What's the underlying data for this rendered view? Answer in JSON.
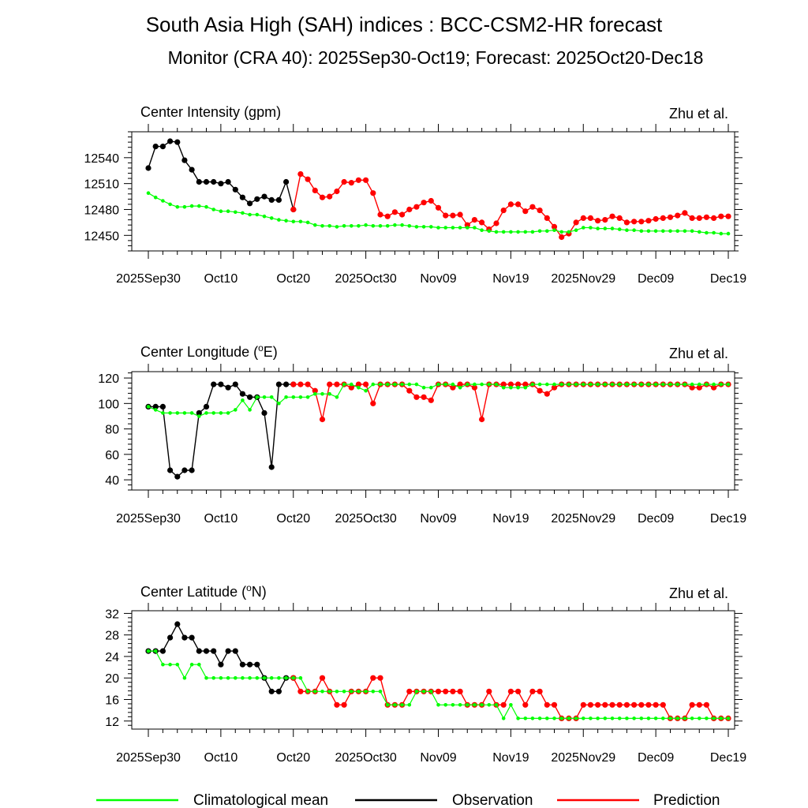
{
  "header": {
    "title": "South Asia High (SAH) indices : BCC-CSM2-HR forecast",
    "subtitle": "Monitor (CRA 40): 2025Sep30-Oct19; Forecast: 2025Oct20-Dec18"
  },
  "colors": {
    "climatology": "#00ff00",
    "observation": "#000000",
    "prediction": "#ff0000"
  },
  "x_tick_labels": [
    "2025Sep30",
    "Oct10",
    "Oct20",
    "2025Oct30",
    "Nov09",
    "Nov19",
    "2025Nov29",
    "Dec09",
    "Dec19"
  ],
  "legend": [
    "Climatological mean",
    "Observation",
    "Prediction"
  ],
  "chart_data": [
    {
      "type": "line",
      "title": "Center Intensity (gpm)",
      "credit": "Zhu et al.",
      "ylim": [
        12432,
        12570
      ],
      "yticks": [
        12450,
        12480,
        12510,
        12540
      ],
      "x_range": [
        0,
        80
      ],
      "climatology": [
        12499,
        12494,
        12490,
        12486,
        12483,
        12483,
        12484,
        12484,
        12483,
        12480,
        12478,
        12478,
        12477,
        12476,
        12474,
        12474,
        12472,
        12470,
        12468,
        12467,
        12466,
        12466,
        12465,
        12462,
        12461,
        12461,
        12460,
        12461,
        12461,
        12461,
        12462,
        12461,
        12461,
        12461,
        12462,
        12462,
        12461,
        12460,
        12460,
        12460,
        12459,
        12459,
        12459,
        12459,
        12459,
        12459,
        12456,
        12455,
        12454,
        12454,
        12454,
        12454,
        12454,
        12454,
        12455,
        12455,
        12456,
        12454,
        12454,
        12456,
        12459,
        12459,
        12458,
        12458,
        12458,
        12457,
        12456,
        12456,
        12455,
        12455,
        12455,
        12455,
        12455,
        12455,
        12455,
        12455,
        12454,
        12453,
        12453,
        12452,
        12452
      ],
      "observation": [
        12528,
        12553,
        12553,
        12559,
        12558,
        12537,
        12526,
        12512,
        12512,
        12512,
        12510,
        12512,
        12503,
        12494,
        12487,
        12492,
        12495,
        12491,
        12491,
        12512,
        12480
      ],
      "prediction": [
        12480,
        12521,
        12515,
        12502,
        12494,
        12495,
        12501,
        12512,
        12511,
        12514,
        12514,
        12499,
        12474,
        12472,
        12477,
        12474,
        12480,
        12483,
        12488,
        12490,
        12482,
        12473,
        12473,
        12474,
        12462,
        12468,
        12465,
        12457,
        12464,
        12479,
        12486,
        12486,
        12478,
        12483,
        12479,
        12470,
        12460,
        12448,
        12452,
        12465,
        12470,
        12470,
        12467,
        12468,
        12472,
        12470,
        12465,
        12466,
        12466,
        12467,
        12469,
        12470,
        12471,
        12473,
        12476,
        12470,
        12470,
        12471,
        12470,
        12472,
        12472
      ]
    },
    {
      "type": "line",
      "title": "Center Longitude (",
      "title_sup": "o",
      "title_end": "E)",
      "credit": "Zhu et al.",
      "ylim": [
        32,
        125
      ],
      "yticks": [
        40,
        60,
        80,
        100,
        120
      ],
      "x_range": [
        0,
        80
      ],
      "climatology": [
        97.5,
        95,
        92.5,
        92.5,
        92.5,
        92.5,
        92.5,
        90,
        92.5,
        92.5,
        92.5,
        92.5,
        95,
        102.5,
        95,
        105,
        105,
        105,
        100,
        105,
        105,
        105,
        105,
        107.5,
        107.5,
        107.5,
        105,
        115,
        115,
        112.5,
        110,
        115,
        115,
        115,
        115,
        115,
        115,
        115,
        112.5,
        112.5,
        115,
        115,
        115,
        112.5,
        115,
        115,
        115,
        115,
        115,
        112.5,
        112.5,
        112.5,
        112.5,
        115,
        115,
        115,
        115,
        115,
        115,
        115,
        115,
        115,
        115,
        115,
        115,
        115,
        115,
        115,
        115,
        115,
        115,
        115,
        115,
        115,
        115,
        115,
        115,
        115,
        115,
        115,
        115
      ],
      "observation": [
        97.5,
        97.5,
        97.5,
        47.5,
        42.5,
        47.5,
        47.5,
        92.5,
        97.5,
        115,
        115,
        112.5,
        115,
        107.5,
        105,
        105,
        92.5,
        50,
        115,
        115,
        115
      ],
      "prediction": [
        115,
        115,
        115,
        110,
        87.5,
        115,
        115,
        115,
        112.5,
        115,
        115,
        100,
        115,
        115,
        115,
        115,
        110,
        105,
        105,
        102.5,
        115,
        115,
        112.5,
        115,
        115,
        112.5,
        87.5,
        115,
        115,
        115,
        115,
        115,
        115,
        115,
        110,
        107.5,
        112.5,
        115,
        115,
        115,
        115,
        115,
        115,
        115,
        115,
        115,
        115,
        115,
        115,
        115,
        115,
        115,
        115,
        115,
        115,
        112.5,
        112.5,
        115,
        112.5,
        115,
        115
      ]
    },
    {
      "type": "line",
      "title": "Center Latitude (",
      "title_sup": "o",
      "title_end": "N)",
      "credit": "Zhu et al.",
      "ylim": [
        10.5,
        32.5
      ],
      "yticks": [
        12,
        16,
        20,
        24,
        28,
        32
      ],
      "x_range": [
        0,
        80
      ],
      "climatology": [
        25,
        25,
        22.5,
        22.5,
        22.5,
        20,
        22.5,
        22.5,
        20,
        20,
        20,
        20,
        20,
        20,
        20,
        20,
        20,
        20,
        20,
        20,
        20,
        20,
        17.5,
        17.5,
        17.5,
        17.5,
        17.5,
        17.5,
        17.5,
        17.5,
        17.5,
        17.5,
        17.5,
        15,
        15,
        15,
        15,
        17.5,
        17.5,
        17.5,
        15,
        15,
        15,
        15,
        15,
        15,
        15,
        15,
        15,
        12.5,
        15,
        12.5,
        12.5,
        12.5,
        12.5,
        12.5,
        12.5,
        12.5,
        12.5,
        12.5,
        12.5,
        12.5,
        12.5,
        12.5,
        12.5,
        12.5,
        12.5,
        12.5,
        12.5,
        12.5,
        12.5,
        12.5,
        12.5,
        12.5,
        12.5,
        12.5,
        12.5,
        12.5,
        12.5,
        12.5,
        12.5
      ],
      "observation": [
        25,
        25,
        25,
        27.5,
        30,
        27.5,
        27.5,
        25,
        25,
        25,
        22.5,
        25,
        25,
        22.5,
        22.5,
        22.5,
        20,
        17.5,
        17.5,
        20,
        20
      ],
      "prediction": [
        20,
        17.5,
        17.5,
        17.5,
        20,
        17.5,
        15,
        15,
        17.5,
        17.5,
        17.5,
        20,
        20,
        15,
        15,
        15,
        17.5,
        17.5,
        17.5,
        17.5,
        17.5,
        17.5,
        17.5,
        17.5,
        15,
        15,
        15,
        17.5,
        15,
        15,
        17.5,
        17.5,
        15,
        17.5,
        17.5,
        15,
        15,
        12.5,
        12.5,
        12.5,
        15,
        15,
        15,
        15,
        15,
        15,
        15,
        15,
        15,
        15,
        15,
        15,
        12.5,
        12.5,
        12.5,
        15,
        15,
        15,
        12.5,
        12.5,
        12.5
      ]
    }
  ]
}
